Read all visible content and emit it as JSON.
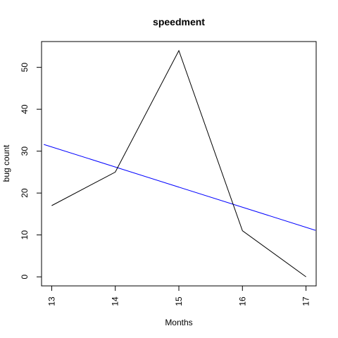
{
  "chart_data": {
    "type": "line",
    "title": "speedment",
    "xlabel": "Months",
    "ylabel": "bug count",
    "x": [
      13,
      14,
      15,
      16,
      17
    ],
    "series": [
      {
        "values": [
          17,
          25,
          54,
          11,
          0
        ],
        "color": "#000000"
      }
    ],
    "trend_line": {
      "start": [
        12.875,
        31.6
      ],
      "end": [
        17.15,
        11.1
      ],
      "color": "#0000ff"
    },
    "xlim": [
      12.84,
      17.16
    ],
    "ylim": [
      -2.16,
      56.16
    ],
    "x_ticks": [
      13,
      14,
      15,
      16,
      17
    ],
    "y_ticks": [
      0,
      10,
      20,
      30,
      40,
      50
    ],
    "grid": false,
    "legend": "none"
  }
}
